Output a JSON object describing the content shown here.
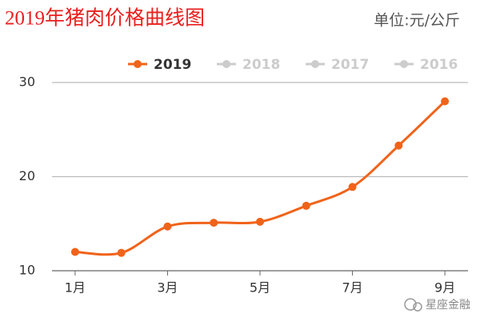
{
  "chart_data": {
    "type": "line",
    "title": "2019年猪肉价格曲线图",
    "subtitle": "单位:元/公斤",
    "categories": [
      "1月",
      null,
      "3月",
      null,
      "5月",
      null,
      "7月",
      null,
      "9月"
    ],
    "series": [
      {
        "name": "2019",
        "color": "#f0631a",
        "values": [
          12.0,
          11.9,
          14.7,
          15.1,
          15.2,
          16.9,
          18.9,
          23.3,
          28.0
        ]
      }
    ],
    "legend": [
      {
        "name": "2019",
        "active": true
      },
      {
        "name": "2018",
        "active": false
      },
      {
        "name": "2017",
        "active": false
      },
      {
        "name": "2016",
        "active": false
      }
    ],
    "ylim": [
      10,
      30
    ],
    "yticks": [
      10,
      20,
      30
    ],
    "grid": true,
    "smooth": true,
    "watermark": "星座金融"
  }
}
